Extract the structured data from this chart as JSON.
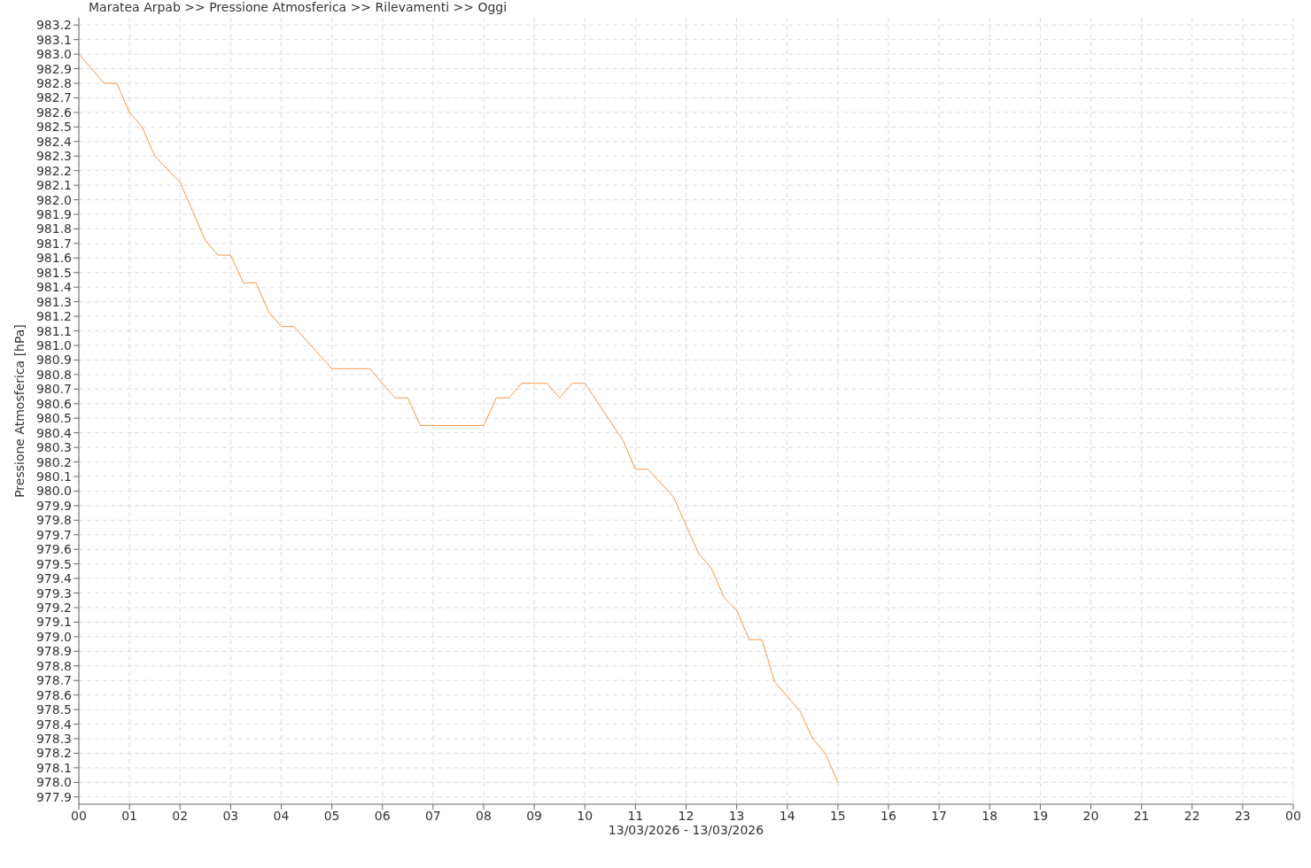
{
  "chart_data": {
    "type": "line",
    "title": "Maratea Arpab >> Pressione Atmosferica >> Rilevamenti >> Oggi",
    "xlabel": "13/03/2026 - 13/03/2026",
    "ylabel": "Pressione Atmosferica [hPa]",
    "x": [
      0,
      0.5,
      0.75,
      1,
      1.25,
      1.5,
      2,
      2.5,
      2.75,
      3,
      3.25,
      3.5,
      3.75,
      4,
      4.25,
      5,
      5.75,
      6.25,
      6.5,
      6.75,
      8,
      8.25,
      8.5,
      8.75,
      9.25,
      9.5,
      9.75,
      10,
      10.75,
      11,
      11.25,
      11.75,
      12.25,
      12.5,
      12.75,
      13,
      13.25,
      13.5,
      13.75,
      14.25,
      14.5,
      14.75,
      15
    ],
    "series": [
      {
        "color": "#f79646",
        "values": [
          983.0,
          982.8,
          982.8,
          982.6,
          982.5,
          982.3,
          982.12,
          981.72,
          981.62,
          981.62,
          981.43,
          981.43,
          981.23,
          981.13,
          981.13,
          980.84,
          980.84,
          980.64,
          980.64,
          980.45,
          980.45,
          980.64,
          980.64,
          980.74,
          980.74,
          980.64,
          980.74,
          980.74,
          980.35,
          980.15,
          980.15,
          979.96,
          979.57,
          979.47,
          979.27,
          979.18,
          978.98,
          978.98,
          978.69,
          978.49,
          978.3,
          978.2,
          978.0
        ]
      }
    ],
    "xlim": [
      0,
      24
    ],
    "xticks": [
      {
        "value": 0,
        "label": "00"
      },
      {
        "value": 1,
        "label": "01"
      },
      {
        "value": 2,
        "label": "02"
      },
      {
        "value": 3,
        "label": "03"
      },
      {
        "value": 4,
        "label": "04"
      },
      {
        "value": 5,
        "label": "05"
      },
      {
        "value": 6,
        "label": "06"
      },
      {
        "value": 7,
        "label": "07"
      },
      {
        "value": 8,
        "label": "08"
      },
      {
        "value": 9,
        "label": "09"
      },
      {
        "value": 10,
        "label": "10"
      },
      {
        "value": 11,
        "label": "11"
      },
      {
        "value": 12,
        "label": "12"
      },
      {
        "value": 13,
        "label": "13"
      },
      {
        "value": 14,
        "label": "14"
      },
      {
        "value": 15,
        "label": "15"
      },
      {
        "value": 16,
        "label": "16"
      },
      {
        "value": 17,
        "label": "17"
      },
      {
        "value": 18,
        "label": "18"
      },
      {
        "value": 19,
        "label": "19"
      },
      {
        "value": 20,
        "label": "20"
      },
      {
        "value": 21,
        "label": "21"
      },
      {
        "value": 22,
        "label": "22"
      },
      {
        "value": 23,
        "label": "23"
      },
      {
        "value": 24,
        "label": "00"
      }
    ],
    "ylim": [
      977.85,
      983.25
    ],
    "yticks": [
      {
        "value": 977.9,
        "label": "977.9"
      },
      {
        "value": 978.0,
        "label": "978.0"
      },
      {
        "value": 978.1,
        "label": "978.1"
      },
      {
        "value": 978.2,
        "label": "978.2"
      },
      {
        "value": 978.3,
        "label": "978.3"
      },
      {
        "value": 978.4,
        "label": "978.4"
      },
      {
        "value": 978.5,
        "label": "978.5"
      },
      {
        "value": 978.6,
        "label": "978.6"
      },
      {
        "value": 978.7,
        "label": "978.7"
      },
      {
        "value": 978.8,
        "label": "978.8"
      },
      {
        "value": 978.9,
        "label": "978.9"
      },
      {
        "value": 979.0,
        "label": "979.0"
      },
      {
        "value": 979.1,
        "label": "979.1"
      },
      {
        "value": 979.2,
        "label": "979.2"
      },
      {
        "value": 979.3,
        "label": "979.3"
      },
      {
        "value": 979.4,
        "label": "979.4"
      },
      {
        "value": 979.5,
        "label": "979.5"
      },
      {
        "value": 979.6,
        "label": "979.6"
      },
      {
        "value": 979.7,
        "label": "979.7"
      },
      {
        "value": 979.8,
        "label": "979.8"
      },
      {
        "value": 979.9,
        "label": "979.9"
      },
      {
        "value": 980.0,
        "label": "980.0"
      },
      {
        "value": 980.1,
        "label": "980.1"
      },
      {
        "value": 980.2,
        "label": "980.2"
      },
      {
        "value": 980.3,
        "label": "980.3"
      },
      {
        "value": 980.4,
        "label": "980.4"
      },
      {
        "value": 980.5,
        "label": "980.5"
      },
      {
        "value": 980.6,
        "label": "980.6"
      },
      {
        "value": 980.7,
        "label": "980.7"
      },
      {
        "value": 980.8,
        "label": "980.8"
      },
      {
        "value": 980.9,
        "label": "980.9"
      },
      {
        "value": 981.0,
        "label": "981.0"
      },
      {
        "value": 981.1,
        "label": "981.1"
      },
      {
        "value": 981.2,
        "label": "981.2"
      },
      {
        "value": 981.3,
        "label": "981.3"
      },
      {
        "value": 981.4,
        "label": "981.4"
      },
      {
        "value": 981.5,
        "label": "981.5"
      },
      {
        "value": 981.6,
        "label": "981.6"
      },
      {
        "value": 981.7,
        "label": "981.7"
      },
      {
        "value": 981.8,
        "label": "981.8"
      },
      {
        "value": 981.9,
        "label": "981.9"
      },
      {
        "value": 982.0,
        "label": "982.0"
      },
      {
        "value": 982.1,
        "label": "982.1"
      },
      {
        "value": 982.2,
        "label": "982.2"
      },
      {
        "value": 982.3,
        "label": "982.3"
      },
      {
        "value": 982.4,
        "label": "982.4"
      },
      {
        "value": 982.5,
        "label": "982.5"
      },
      {
        "value": 982.6,
        "label": "982.6"
      },
      {
        "value": 982.7,
        "label": "982.7"
      },
      {
        "value": 982.8,
        "label": "982.8"
      },
      {
        "value": 982.9,
        "label": "982.9"
      },
      {
        "value": 983.0,
        "label": "983.0"
      },
      {
        "value": 983.1,
        "label": "983.1"
      },
      {
        "value": 983.2,
        "label": "983.2"
      }
    ],
    "grid": true,
    "line_style": "solid",
    "marker": "none"
  }
}
